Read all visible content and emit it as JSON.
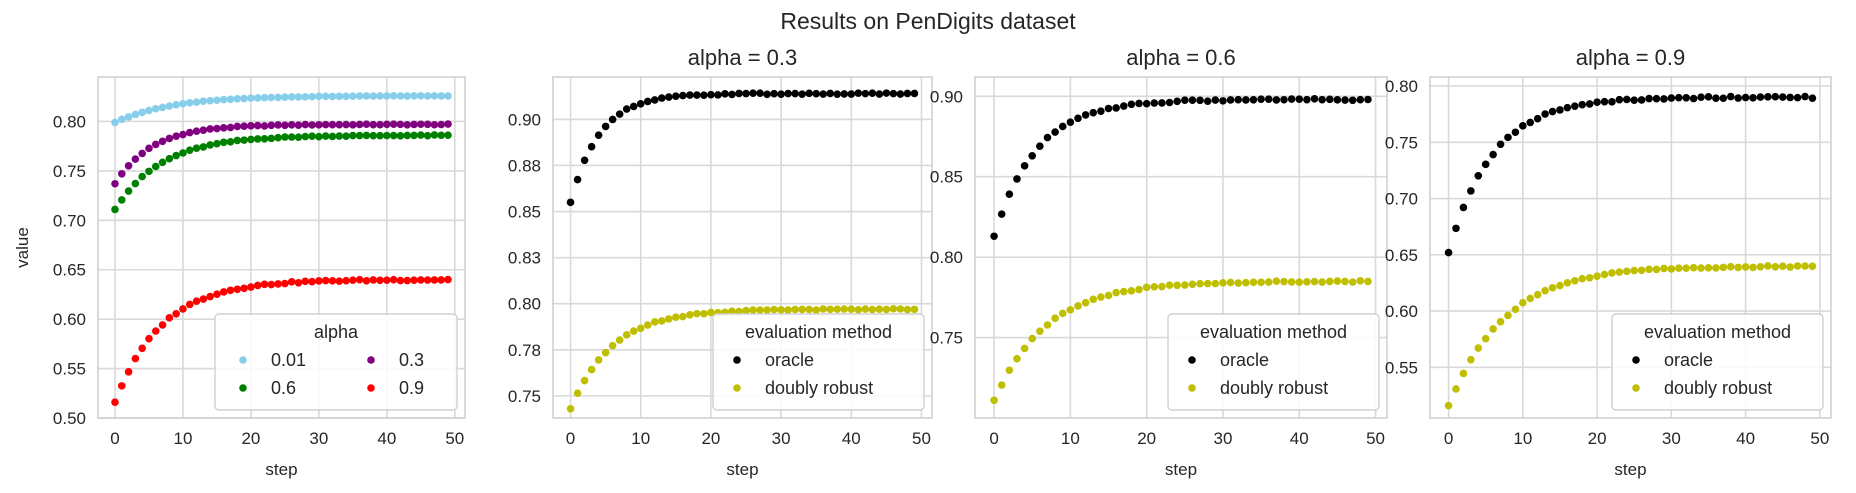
{
  "figure": {
    "suptitle": "Results on PenDigits dataset"
  },
  "chart_data": [
    {
      "type": "scatter",
      "title": "",
      "xlabel": "step",
      "ylabel": "value",
      "xlim": [
        -2.5,
        51.5
      ],
      "ylim": [
        0.5,
        0.845
      ],
      "xticks": [
        0,
        10,
        20,
        30,
        40,
        50
      ],
      "xtick_labels": [
        "0",
        "10",
        "20",
        "30",
        "40",
        "50"
      ],
      "yticks": [
        0.5,
        0.55,
        0.6,
        0.65,
        0.7,
        0.75,
        0.8
      ],
      "ytick_labels": [
        "0.50",
        "0.55",
        "0.60",
        "0.65",
        "0.70",
        "0.75",
        "0.80"
      ],
      "grid": true,
      "legend": {
        "title": "alpha",
        "position": "lower-right",
        "columns": 2
      },
      "series": [
        {
          "name": "0.01",
          "color": "#87ceeb",
          "start": 0.799,
          "end": 0.826,
          "rate": 0.1
        },
        {
          "name": "0.3",
          "color": "#800080",
          "start": 0.737,
          "end": 0.797,
          "rate": 0.15
        },
        {
          "name": "0.6",
          "color": "#008000",
          "start": 0.711,
          "end": 0.786,
          "rate": 0.12
        },
        {
          "name": "0.9",
          "color": "#ff0000",
          "start": 0.516,
          "end": 0.64,
          "rate": 0.12
        }
      ]
    },
    {
      "type": "scatter",
      "title": "alpha = 0.3",
      "xlabel": "step",
      "ylabel": "",
      "xlim": [
        -2.5,
        51.5
      ],
      "ylim": [
        0.738,
        0.923
      ],
      "xticks": [
        0,
        10,
        20,
        30,
        40,
        50
      ],
      "xtick_labels": [
        "0",
        "10",
        "20",
        "30",
        "40",
        "50"
      ],
      "yticks": [
        0.75,
        0.775,
        0.8,
        0.825,
        0.85,
        0.875,
        0.9
      ],
      "ytick_labels": [
        "0.75",
        "0.78",
        "0.80",
        "0.83",
        "0.85",
        "0.88",
        "0.90"
      ],
      "grid": true,
      "legend": {
        "title": "evaluation method",
        "position": "lower-right",
        "columns": 1
      },
      "series": [
        {
          "name": "oracle",
          "color": "#000000",
          "start": 0.855,
          "end": 0.914,
          "rate": 0.2
        },
        {
          "name": "doubly robust",
          "color": "#bfbf00",
          "start": 0.743,
          "end": 0.797,
          "rate": 0.14
        }
      ]
    },
    {
      "type": "scatter",
      "title": "alpha = 0.6",
      "xlabel": "step",
      "ylabel": "",
      "xlim": [
        -2.5,
        51.5
      ],
      "ylim": [
        0.7,
        0.912
      ],
      "xticks": [
        0,
        10,
        20,
        30,
        40,
        50
      ],
      "xtick_labels": [
        "0",
        "10",
        "20",
        "30",
        "40",
        "50"
      ],
      "yticks": [
        0.75,
        0.8,
        0.85,
        0.9
      ],
      "ytick_labels": [
        "0.75",
        "0.80",
        "0.85",
        "0.90"
      ],
      "grid": true,
      "legend": {
        "title": "evaluation method",
        "position": "lower-right",
        "columns": 1
      },
      "series": [
        {
          "name": "oracle",
          "color": "#000000",
          "start": 0.813,
          "end": 0.898,
          "rate": 0.15
        },
        {
          "name": "doubly robust",
          "color": "#bfbf00",
          "start": 0.711,
          "end": 0.785,
          "rate": 0.12
        }
      ]
    },
    {
      "type": "scatter",
      "title": "alpha = 0.9",
      "xlabel": "step",
      "ylabel": "",
      "xlim": [
        -2.5,
        51.5
      ],
      "ylim": [
        0.505,
        0.808
      ],
      "xticks": [
        0,
        10,
        20,
        30,
        40,
        50
      ],
      "xtick_labels": [
        "0",
        "10",
        "20",
        "30",
        "40",
        "50"
      ],
      "yticks": [
        0.55,
        0.6,
        0.65,
        0.7,
        0.75,
        0.8
      ],
      "ytick_labels": [
        "0.55",
        "0.60",
        "0.65",
        "0.70",
        "0.75",
        "0.80"
      ],
      "grid": true,
      "legend": {
        "title": "evaluation method",
        "position": "lower-right",
        "columns": 1
      },
      "series": [
        {
          "name": "oracle",
          "color": "#000000",
          "start": 0.652,
          "end": 0.79,
          "rate": 0.14
        },
        {
          "name": "doubly robust",
          "color": "#bfbf00",
          "start": 0.516,
          "end": 0.64,
          "rate": 0.11
        }
      ]
    }
  ]
}
